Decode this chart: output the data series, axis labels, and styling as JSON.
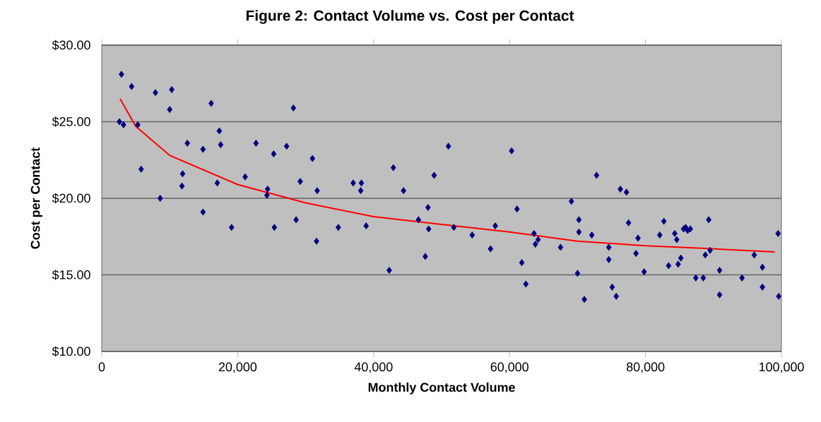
{
  "chart_data": {
    "type": "scatter",
    "title": "Figure 2: Contact Volume vs. Cost per Contact",
    "xlabel": "Monthly Contact Volume",
    "ylabel": "Cost per Contact",
    "xlim": [
      0,
      100000
    ],
    "ylim": [
      10,
      30
    ],
    "xticks": [
      {
        "value": 0,
        "label": "0"
      },
      {
        "value": 20000,
        "label": "20,000"
      },
      {
        "value": 40000,
        "label": "40,000"
      },
      {
        "value": 60000,
        "label": "60,000"
      },
      {
        "value": 80000,
        "label": "80,000"
      },
      {
        "value": 100000,
        "label": "100,000"
      }
    ],
    "yticks": [
      {
        "value": 10,
        "label": "$10.00"
      },
      {
        "value": 15,
        "label": "$15.00"
      },
      {
        "value": 20,
        "label": "$20.00"
      },
      {
        "value": 25,
        "label": "$25.00"
      },
      {
        "value": 30,
        "label": "$30.00"
      }
    ],
    "grid": "y",
    "series": [
      {
        "color": "#000080",
        "marker": "diamond",
        "x": [
          2900,
          4400,
          7900,
          10300,
          10000,
          16100,
          28200,
          2600,
          3200,
          5300,
          12600,
          14900,
          17300,
          17500,
          22700,
          25300,
          27200,
          31000,
          51000,
          5800,
          11900,
          11800,
          17000,
          21100,
          24300,
          24400,
          29200,
          31700,
          37000,
          38200,
          38100,
          42900,
          44400,
          48900,
          48000,
          8600,
          14900,
          19100,
          25400,
          28600,
          31600,
          34800,
          38900,
          42300,
          46600,
          48100,
          47600,
          51800,
          54500,
          57200,
          57900,
          60300,
          61100,
          61800,
          62400,
          63600,
          63800,
          64200,
          67500,
          69100,
          70200,
          70200,
          72100,
          70000,
          71000,
          72800,
          74600,
          74600,
          75100,
          75700,
          76300,
          77200,
          77500,
          78900,
          78600,
          79800,
          82100,
          82700,
          83400,
          84300,
          84600,
          84800,
          85200,
          85600,
          85900,
          86200,
          86600,
          87400,
          88500,
          88800,
          89300,
          89500,
          90900,
          90900,
          94200,
          96000,
          97200,
          97200,
          99500,
          99600
        ],
        "values": [
          28.1,
          27.3,
          26.9,
          27.1,
          25.8,
          26.2,
          25.9,
          25.0,
          24.8,
          24.8,
          23.6,
          23.2,
          24.4,
          23.5,
          23.6,
          22.9,
          23.4,
          22.6,
          23.4,
          21.9,
          21.6,
          20.8,
          21.0,
          21.4,
          20.2,
          20.6,
          21.1,
          20.5,
          21.0,
          21.0,
          20.5,
          22.0,
          20.5,
          21.5,
          19.4,
          20.0,
          19.1,
          18.1,
          18.1,
          18.6,
          17.2,
          18.1,
          18.2,
          15.3,
          18.6,
          18.0,
          16.2,
          18.1,
          17.6,
          16.7,
          18.2,
          23.1,
          19.3,
          15.8,
          14.4,
          17.7,
          17.0,
          17.3,
          16.8,
          19.8,
          18.6,
          17.8,
          17.6,
          15.1,
          13.4,
          21.5,
          16.8,
          16.0,
          14.2,
          13.6,
          20.6,
          20.4,
          18.4,
          17.4,
          16.4,
          15.2,
          17.6,
          18.5,
          15.6,
          17.7,
          17.3,
          15.7,
          16.1,
          18.0,
          18.1,
          17.9,
          18.0,
          14.8,
          14.8,
          16.3,
          18.6,
          16.6,
          15.3,
          13.7,
          14.8,
          16.3,
          15.5,
          14.2,
          17.7,
          13.6
        ]
      },
      {
        "type": "line",
        "color": "#ff0000",
        "marker": "none",
        "line_style": "solid",
        "x": [
          2700,
          5000,
          10000,
          20000,
          30000,
          40000,
          50000,
          60000,
          70000,
          80000,
          90000,
          99000
        ],
        "values": [
          26.5,
          24.7,
          22.8,
          20.9,
          19.7,
          18.8,
          18.3,
          17.8,
          17.2,
          16.9,
          16.7,
          16.5
        ]
      }
    ]
  }
}
